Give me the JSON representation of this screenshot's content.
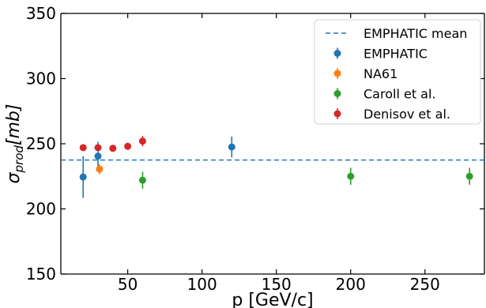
{
  "chart_data": {
    "type": "scatter",
    "title": "",
    "xlabel": "p [GeV/c]",
    "ylabel_main": "σ",
    "ylabel_sub": "prod",
    "ylabel_unit": "[mb]",
    "xlim": [
      5,
      290
    ],
    "ylim": [
      150,
      350
    ],
    "xticks": [
      50,
      100,
      150,
      200,
      250
    ],
    "yticks": [
      150,
      200,
      250,
      300,
      350
    ],
    "grid": false,
    "legend_position": "top-right",
    "reference_line": {
      "name": "EMPHATIC mean",
      "y": 237.5,
      "color": "#1f77b4",
      "style": "dashed"
    },
    "series": [
      {
        "name": "EMPHATIC",
        "color": "#1f77b4",
        "points": [
          {
            "x": 20,
            "y": 224.5,
            "yerr": 16
          },
          {
            "x": 30,
            "y": 240.5,
            "yerr": 11
          },
          {
            "x": 120,
            "y": 247.5,
            "yerr": 8
          }
        ]
      },
      {
        "name": "NA61",
        "color": "#ff7f0e",
        "points": [
          {
            "x": 31,
            "y": 230.5,
            "yerr": 4
          }
        ]
      },
      {
        "name": "Caroll et al.",
        "color": "#2ca02c",
        "points": [
          {
            "x": 60,
            "y": 222,
            "yerr": 6.5
          },
          {
            "x": 200,
            "y": 225,
            "yerr": 6.5
          },
          {
            "x": 280,
            "y": 225,
            "yerr": 6.5
          }
        ]
      },
      {
        "name": "Denisov et al.",
        "color": "#d62728",
        "points": [
          {
            "x": 20,
            "y": 247,
            "yerr": 2
          },
          {
            "x": 30,
            "y": 247,
            "yerr": 2
          },
          {
            "x": 40,
            "y": 246.5,
            "yerr": 2
          },
          {
            "x": 50,
            "y": 248,
            "yerr": 2
          },
          {
            "x": 60,
            "y": 252,
            "yerr": 4
          }
        ]
      }
    ]
  }
}
